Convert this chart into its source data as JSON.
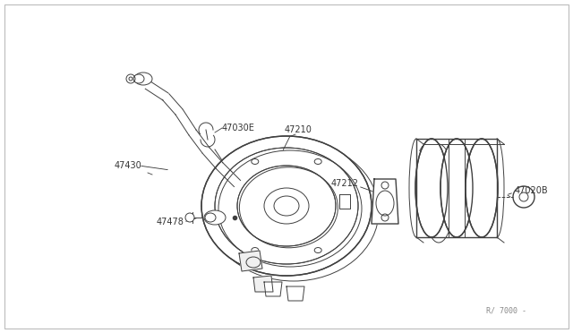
{
  "background_color": "#ffffff",
  "line_color": "#404040",
  "text_color": "#333333",
  "fig_width": 6.4,
  "fig_height": 3.72,
  "dpi": 100,
  "watermark": "R/ 7000 -",
  "label_fontsize": 7.0
}
